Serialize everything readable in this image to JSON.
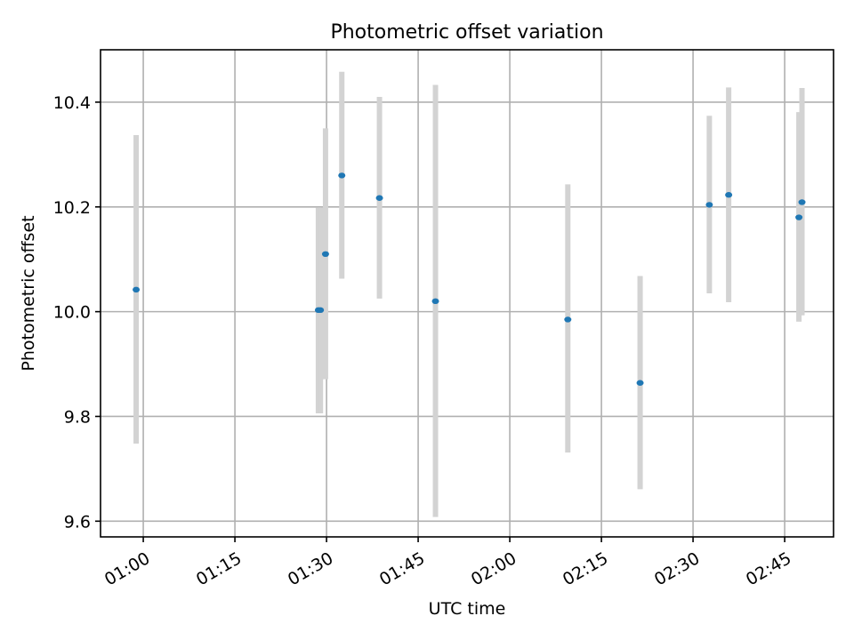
{
  "chart_data": {
    "type": "scatter",
    "title": "Photometric offset variation",
    "xlabel": "UTC time",
    "ylabel": "Photometric offset",
    "x_ticks": [
      "01:00",
      "01:15",
      "01:30",
      "01:45",
      "02:00",
      "02:15",
      "02:30",
      "02:45"
    ],
    "y_ticks": [
      "9.6",
      "9.8",
      "10.0",
      "10.2",
      "10.4"
    ],
    "xlim": [
      "00:53:00",
      "02:53:00"
    ],
    "ylim": [
      9.57,
      10.5
    ],
    "grid": true,
    "points": [
      {
        "time": "00:58:50",
        "y": 10.042,
        "yerr_low": 9.748,
        "yerr_high": 10.337
      },
      {
        "time": "01:28:40",
        "y": 10.003,
        "yerr_low": 9.806,
        "yerr_high": 10.199
      },
      {
        "time": "01:29:00",
        "y": 10.003,
        "yerr_low": 9.806,
        "yerr_high": 10.199
      },
      {
        "time": "01:29:50",
        "y": 10.11,
        "yerr_low": 9.871,
        "yerr_high": 10.35
      },
      {
        "time": "01:32:30",
        "y": 10.26,
        "yerr_low": 10.063,
        "yerr_high": 10.458
      },
      {
        "time": "01:38:40",
        "y": 10.217,
        "yerr_low": 10.025,
        "yerr_high": 10.41
      },
      {
        "time": "01:47:50",
        "y": 10.02,
        "yerr_low": 9.608,
        "yerr_high": 10.433
      },
      {
        "time": "02:09:30",
        "y": 9.985,
        "yerr_low": 9.731,
        "yerr_high": 10.243
      },
      {
        "time": "02:21:20",
        "y": 9.864,
        "yerr_low": 9.661,
        "yerr_high": 10.068
      },
      {
        "time": "02:32:40",
        "y": 10.204,
        "yerr_low": 10.035,
        "yerr_high": 10.374
      },
      {
        "time": "02:35:50",
        "y": 10.223,
        "yerr_low": 10.018,
        "yerr_high": 10.428
      },
      {
        "time": "02:47:20",
        "y": 10.18,
        "yerr_low": 9.981,
        "yerr_high": 10.381
      },
      {
        "time": "02:47:50",
        "y": 10.209,
        "yerr_low": 9.993,
        "yerr_high": 10.427
      }
    ],
    "marker_color": "#1f77b4",
    "errorbar_color": "#d3d3d3"
  }
}
